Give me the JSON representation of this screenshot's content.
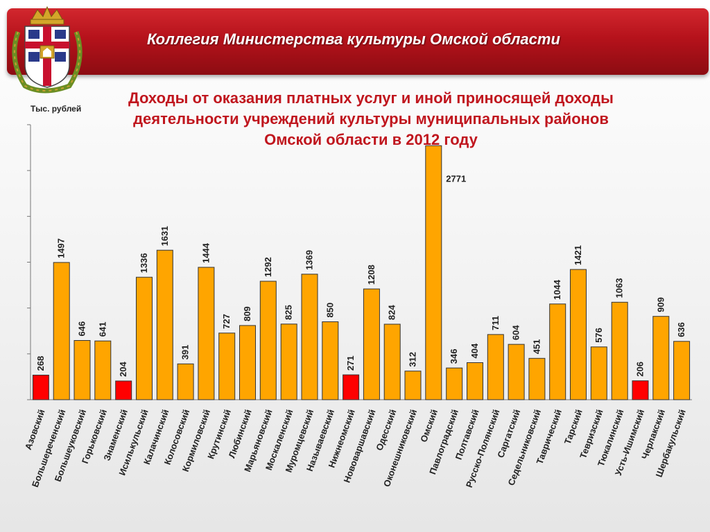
{
  "header": {
    "title": "Коллегия Министерства культуры Омской области"
  },
  "emblem": {
    "icon": "omsk-coat-of-arms-icon"
  },
  "colors": {
    "banner": "#b5121b",
    "bar_default": "#ffa500",
    "bar_highlight": "#ff0000",
    "bar_border": "#333333",
    "title": "#c0161e"
  },
  "chart_data": {
    "type": "bar",
    "title_lines": [
      "Доходы от оказания платных услуг и иной приносящей доходы",
      "деятельности учреждений культуры муниципальных районов",
      "Омской области в 2012 году"
    ],
    "ylabel": "Тыс. рублей",
    "xlabel": "",
    "ylim": [
      0,
      3000
    ],
    "y_tick_step": 500,
    "grid": false,
    "categories": [
      "Азовский",
      "Большереченский",
      "Большеуковский",
      "Горьковский",
      "Знаменский",
      "Исилькульский",
      "Калачинский",
      "Колосовский",
      "Кормиловский",
      "Крутинский",
      "Любинский",
      "Марьяновский",
      "Москаленский",
      "Муромцевский",
      "Называевский",
      "Нижнеомский",
      "Нововаршавский",
      "Одесский",
      "Оконешниковский",
      "Омский",
      "Павлоградский",
      "Полтавский",
      "Русско-Полянский",
      "Саргатский",
      "Седельниковский",
      "Таврический",
      "Тарский",
      "Тевризский",
      "Тюкалинский",
      "Усть-Ишимский",
      "Черлакский",
      "Шербакульский"
    ],
    "values": [
      268,
      1497,
      646,
      641,
      204,
      1336,
      1631,
      391,
      1444,
      727,
      809,
      1292,
      825,
      1369,
      850,
      271,
      1208,
      824,
      312,
      2771,
      346,
      404,
      711,
      604,
      451,
      1044,
      1421,
      576,
      1063,
      206,
      909,
      636
    ],
    "highlight": [
      true,
      false,
      false,
      false,
      true,
      false,
      false,
      false,
      false,
      false,
      false,
      false,
      false,
      false,
      false,
      true,
      false,
      false,
      false,
      false,
      false,
      false,
      false,
      false,
      false,
      false,
      false,
      false,
      false,
      true,
      false,
      false
    ]
  }
}
